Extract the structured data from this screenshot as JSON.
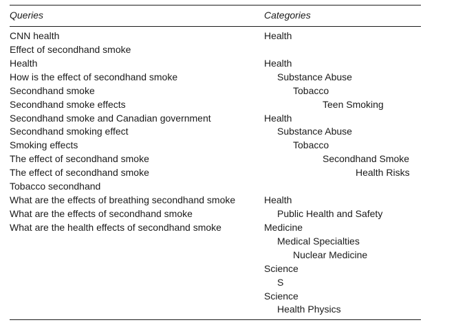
{
  "headers": {
    "queries": "Queries",
    "categories": "Categories"
  },
  "queries": [
    "CNN health",
    "Effect of secondhand smoke",
    "Health",
    "How is the effect of secondhand smoke",
    "Secondhand smoke",
    "Secondhand smoke effects",
    "Secondhand smoke and Canadian government",
    "Secondhand smoking effect",
    "Smoking effects",
    "The effect of secondhand smoke",
    "The effect of secondhand smoke",
    "Tobacco secondhand",
    "What are the effects of breathing secondhand smoke",
    "What are the effects of secondhand smoke",
    "What are the health effects of secondhand smoke"
  ],
  "categories": [
    {
      "text": "Health",
      "level": 0
    },
    {
      "text": "",
      "level": 0
    },
    {
      "text": "Health",
      "level": 0
    },
    {
      "text": "Substance Abuse",
      "level": 1
    },
    {
      "text": "Tobacco",
      "level": 2
    },
    {
      "text": "Teen Smoking",
      "level": 3
    },
    {
      "text": "Health",
      "level": 0
    },
    {
      "text": "Substance Abuse",
      "level": 1
    },
    {
      "text": "Tobacco",
      "level": 2
    },
    {
      "text": "Secondhand Smoke",
      "level": 3
    },
    {
      "text": "Health Risks",
      "level": 4
    },
    {
      "text": "",
      "level": 0
    },
    {
      "text": "Health",
      "level": 0
    },
    {
      "text": "Public Health and Safety",
      "level": 1
    },
    {
      "text": "Medicine",
      "level": 0
    },
    {
      "text": "Medical Specialties",
      "level": 1
    },
    {
      "text": "Nuclear Medicine",
      "level": 2
    },
    {
      "text": "Science",
      "level": 0
    },
    {
      "text": "S",
      "level": 1
    },
    {
      "text": "Science",
      "level": 0
    },
    {
      "text": "Health Physics",
      "level": 1
    }
  ]
}
